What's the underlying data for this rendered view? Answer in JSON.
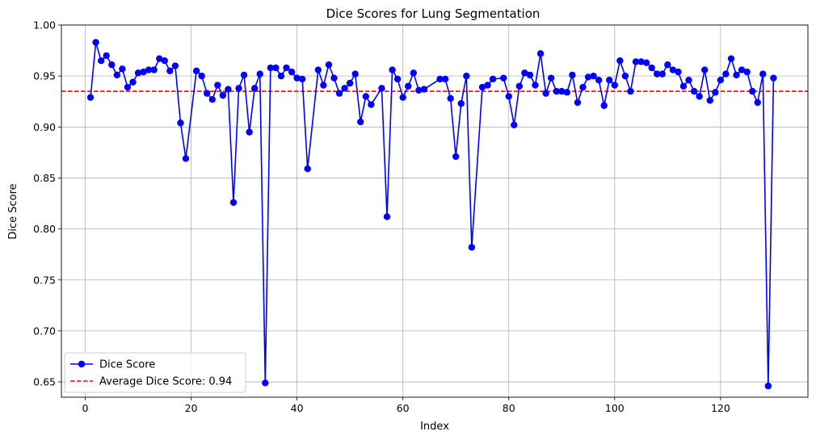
{
  "chart_data": {
    "type": "line",
    "title": "Dice Scores for Lung Segmentation",
    "xlabel": "Index",
    "ylabel": "Dice Score",
    "xlim": [
      -4.5,
      136.5
    ],
    "ylim": [
      0.635,
      1.0
    ],
    "xticks": [
      0,
      20,
      40,
      60,
      80,
      100,
      120
    ],
    "yticks": [
      0.65,
      0.7,
      0.75,
      0.8,
      0.85,
      0.9,
      0.95,
      1.0
    ],
    "xtick_labels": [
      "0",
      "20",
      "40",
      "60",
      "80",
      "100",
      "120"
    ],
    "ytick_labels": [
      "0.65",
      "0.70",
      "0.75",
      "0.80",
      "0.85",
      "0.90",
      "0.95",
      "1.00"
    ],
    "grid": true,
    "legend_position": "lower-left",
    "series": [
      {
        "name": "Dice Score",
        "color": "#0000ff",
        "marker": "circle",
        "x": [
          1,
          2,
          3,
          4,
          5,
          6,
          7,
          8,
          9,
          10,
          11,
          12,
          13,
          14,
          15,
          16,
          17,
          18,
          19,
          21,
          22,
          23,
          24,
          25,
          26,
          27,
          28,
          29,
          30,
          31,
          32,
          33,
          34,
          35,
          36,
          37,
          38,
          39,
          40,
          41,
          42,
          44,
          45,
          46,
          47,
          48,
          49,
          50,
          51,
          52,
          53,
          54,
          56,
          57,
          58,
          59,
          60,
          61,
          62,
          63,
          64,
          67,
          68,
          69,
          70,
          71,
          72,
          73,
          75,
          76,
          77,
          79,
          80,
          81,
          82,
          83,
          84,
          85,
          86,
          87,
          88,
          89,
          90,
          91,
          92,
          93,
          94,
          95,
          96,
          97,
          98,
          99,
          100,
          101,
          102,
          103,
          104,
          105,
          106,
          107,
          108,
          109,
          110,
          111,
          112,
          113,
          114,
          115,
          116,
          117,
          118,
          119,
          120,
          121,
          122,
          123,
          124,
          125,
          126,
          127,
          128,
          129,
          130
        ],
        "y": [
          0.929,
          0.983,
          0.965,
          0.97,
          0.961,
          0.951,
          0.957,
          0.939,
          0.944,
          0.953,
          0.954,
          0.956,
          0.956,
          0.967,
          0.965,
          0.955,
          0.96,
          0.904,
          0.869,
          0.955,
          0.95,
          0.933,
          0.927,
          0.941,
          0.931,
          0.937,
          0.826,
          0.938,
          0.951,
          0.895,
          0.938,
          0.952,
          0.649,
          0.958,
          0.958,
          0.95,
          0.958,
          0.954,
          0.948,
          0.947,
          0.859,
          0.956,
          0.941,
          0.961,
          0.948,
          0.933,
          0.938,
          0.943,
          0.952,
          0.905,
          0.93,
          0.922,
          0.938,
          0.812,
          0.956,
          0.947,
          0.929,
          0.94,
          0.953,
          0.936,
          0.937,
          0.947,
          0.947,
          0.928,
          0.871,
          0.923,
          0.95,
          0.782,
          0.939,
          0.941,
          0.947,
          0.948,
          0.93,
          0.902,
          0.94,
          0.953,
          0.951,
          0.941,
          0.972,
          0.933,
          0.948,
          0.935,
          0.935,
          0.934,
          0.951,
          0.924,
          0.939,
          0.949,
          0.95,
          0.946,
          0.921,
          0.946,
          0.941,
          0.965,
          0.95,
          0.935,
          0.964,
          0.964,
          0.963,
          0.958,
          0.952,
          0.952,
          0.961,
          0.956,
          0.954,
          0.94,
          0.946,
          0.935,
          0.93,
          0.956,
          0.926,
          0.934,
          0.946,
          0.952,
          0.967,
          0.951,
          0.956,
          0.954,
          0.935,
          0.924,
          0.952,
          0.646,
          0.948
        ]
      },
      {
        "name": "Average Dice Score: 0.94",
        "color": "#ff0000",
        "style": "dashed",
        "y_constant": 0.935
      }
    ]
  }
}
